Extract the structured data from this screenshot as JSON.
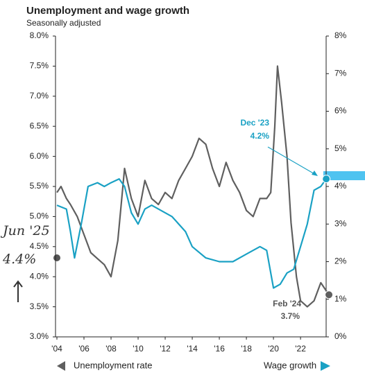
{
  "chart_data": {
    "type": "line",
    "title": "Unemployment and wage growth",
    "subtitle": "Seasonally adjusted",
    "xlim": [
      2004,
      2024.2
    ],
    "xticks": [
      {
        "value": 2004,
        "label": "'04"
      },
      {
        "value": 2006,
        "label": "'06"
      },
      {
        "value": 2008,
        "label": "'08"
      },
      {
        "value": 2010,
        "label": "'10"
      },
      {
        "value": 2012,
        "label": "'12"
      },
      {
        "value": 2014,
        "label": "'14"
      },
      {
        "value": 2016,
        "label": "'16"
      },
      {
        "value": 2018,
        "label": "'18"
      },
      {
        "value": 2020,
        "label": "'20"
      },
      {
        "value": 2022,
        "label": "'22"
      }
    ],
    "ylim": [
      3,
      8
    ],
    "yticks": [
      {
        "value": 3,
        "label": "3.0%"
      },
      {
        "value": 3.5,
        "label": "3.5%"
      },
      {
        "value": 4,
        "label": "4.0%"
      },
      {
        "value": 4.5,
        "label": "4.5%"
      },
      {
        "value": 5,
        "label": "5.0%"
      },
      {
        "value": 5.5,
        "label": "5.5%"
      },
      {
        "value": 6,
        "label": "6.0%"
      },
      {
        "value": 6.5,
        "label": "6.5%"
      },
      {
        "value": 7,
        "label": "7.0%"
      },
      {
        "value": 7.5,
        "label": "7.5%"
      },
      {
        "value": 8,
        "label": "8.0%"
      }
    ],
    "y2lim": [
      0,
      8
    ],
    "y2ticks": [
      {
        "value": 0,
        "label": "0%"
      },
      {
        "value": 1,
        "label": "1%"
      },
      {
        "value": 2,
        "label": "2%"
      },
      {
        "value": 3,
        "label": "3%"
      },
      {
        "value": 4,
        "label": "4%"
      },
      {
        "value": 5,
        "label": "5%"
      },
      {
        "value": 6,
        "label": "6%"
      },
      {
        "value": 7,
        "label": "7%"
      },
      {
        "value": 8,
        "label": "8%"
      }
    ],
    "series": [
      {
        "name": "Unemployment rate",
        "color": "#5f5f5f",
        "x": [
          2004.0,
          2004.3,
          2004.7,
          2005.0,
          2005.5,
          2006.0,
          2006.5,
          2007.0,
          2007.5,
          2008.0,
          2008.5,
          2009.0,
          2009.5,
          2010.0,
          2010.5,
          2011.0,
          2011.5,
          2012.0,
          2012.5,
          2013.0,
          2013.5,
          2014.0,
          2014.5,
          2015.0,
          2015.5,
          2016.0,
          2016.5,
          2017.0,
          2017.5,
          2018.0,
          2018.5,
          2019.0,
          2019.5,
          2019.8,
          2020.1,
          2020.3,
          2020.6,
          2021.0,
          2021.3,
          2021.7,
          2022.0,
          2022.5,
          2023.0,
          2023.5,
          2024.1
        ],
        "values": [
          5.4,
          5.5,
          5.3,
          5.2,
          5.0,
          4.7,
          4.4,
          4.3,
          4.2,
          4.0,
          4.6,
          5.8,
          5.3,
          5.0,
          5.6,
          5.3,
          5.2,
          5.4,
          5.3,
          5.6,
          5.8,
          6.0,
          6.3,
          6.2,
          5.8,
          5.5,
          5.9,
          5.6,
          5.4,
          5.1,
          5.0,
          5.3,
          5.3,
          5.4,
          6.5,
          7.5,
          6.9,
          6.0,
          4.9,
          4.0,
          3.6,
          3.5,
          3.6,
          3.9,
          3.7
        ]
      },
      {
        "name": "Wage growth",
        "color": "#1aa1c4",
        "axis": "y2",
        "x": [
          2004.0,
          2004.7,
          2005.0,
          2005.3,
          2005.8,
          2006.3,
          2007.0,
          2007.5,
          2008.0,
          2008.6,
          2009.0,
          2009.5,
          2010.0,
          2010.5,
          2011.0,
          2011.5,
          2012.5,
          2013.5,
          2014.0,
          2015.0,
          2016.0,
          2017.0,
          2018.0,
          2019.0,
          2019.5,
          2020.0,
          2020.5,
          2021.0,
          2021.5,
          2022.0,
          2022.5,
          2023.0,
          2023.5,
          2023.9
        ],
        "values": [
          3.5,
          3.4,
          2.8,
          2.1,
          3.0,
          4.0,
          4.1,
          4.0,
          4.1,
          4.2,
          4.0,
          3.3,
          3.0,
          3.4,
          3.5,
          3.4,
          3.2,
          2.8,
          2.4,
          2.1,
          2.0,
          2.0,
          2.2,
          2.4,
          2.3,
          1.3,
          1.4,
          1.7,
          1.8,
          2.4,
          3.0,
          3.9,
          4.0,
          4.2
        ]
      }
    ],
    "annotations": [
      "Dec '23",
      "4.2%",
      "Feb '24",
      "3.7%"
    ],
    "handwritten": [
      "Jun '25",
      "4.4%"
    ]
  }
}
